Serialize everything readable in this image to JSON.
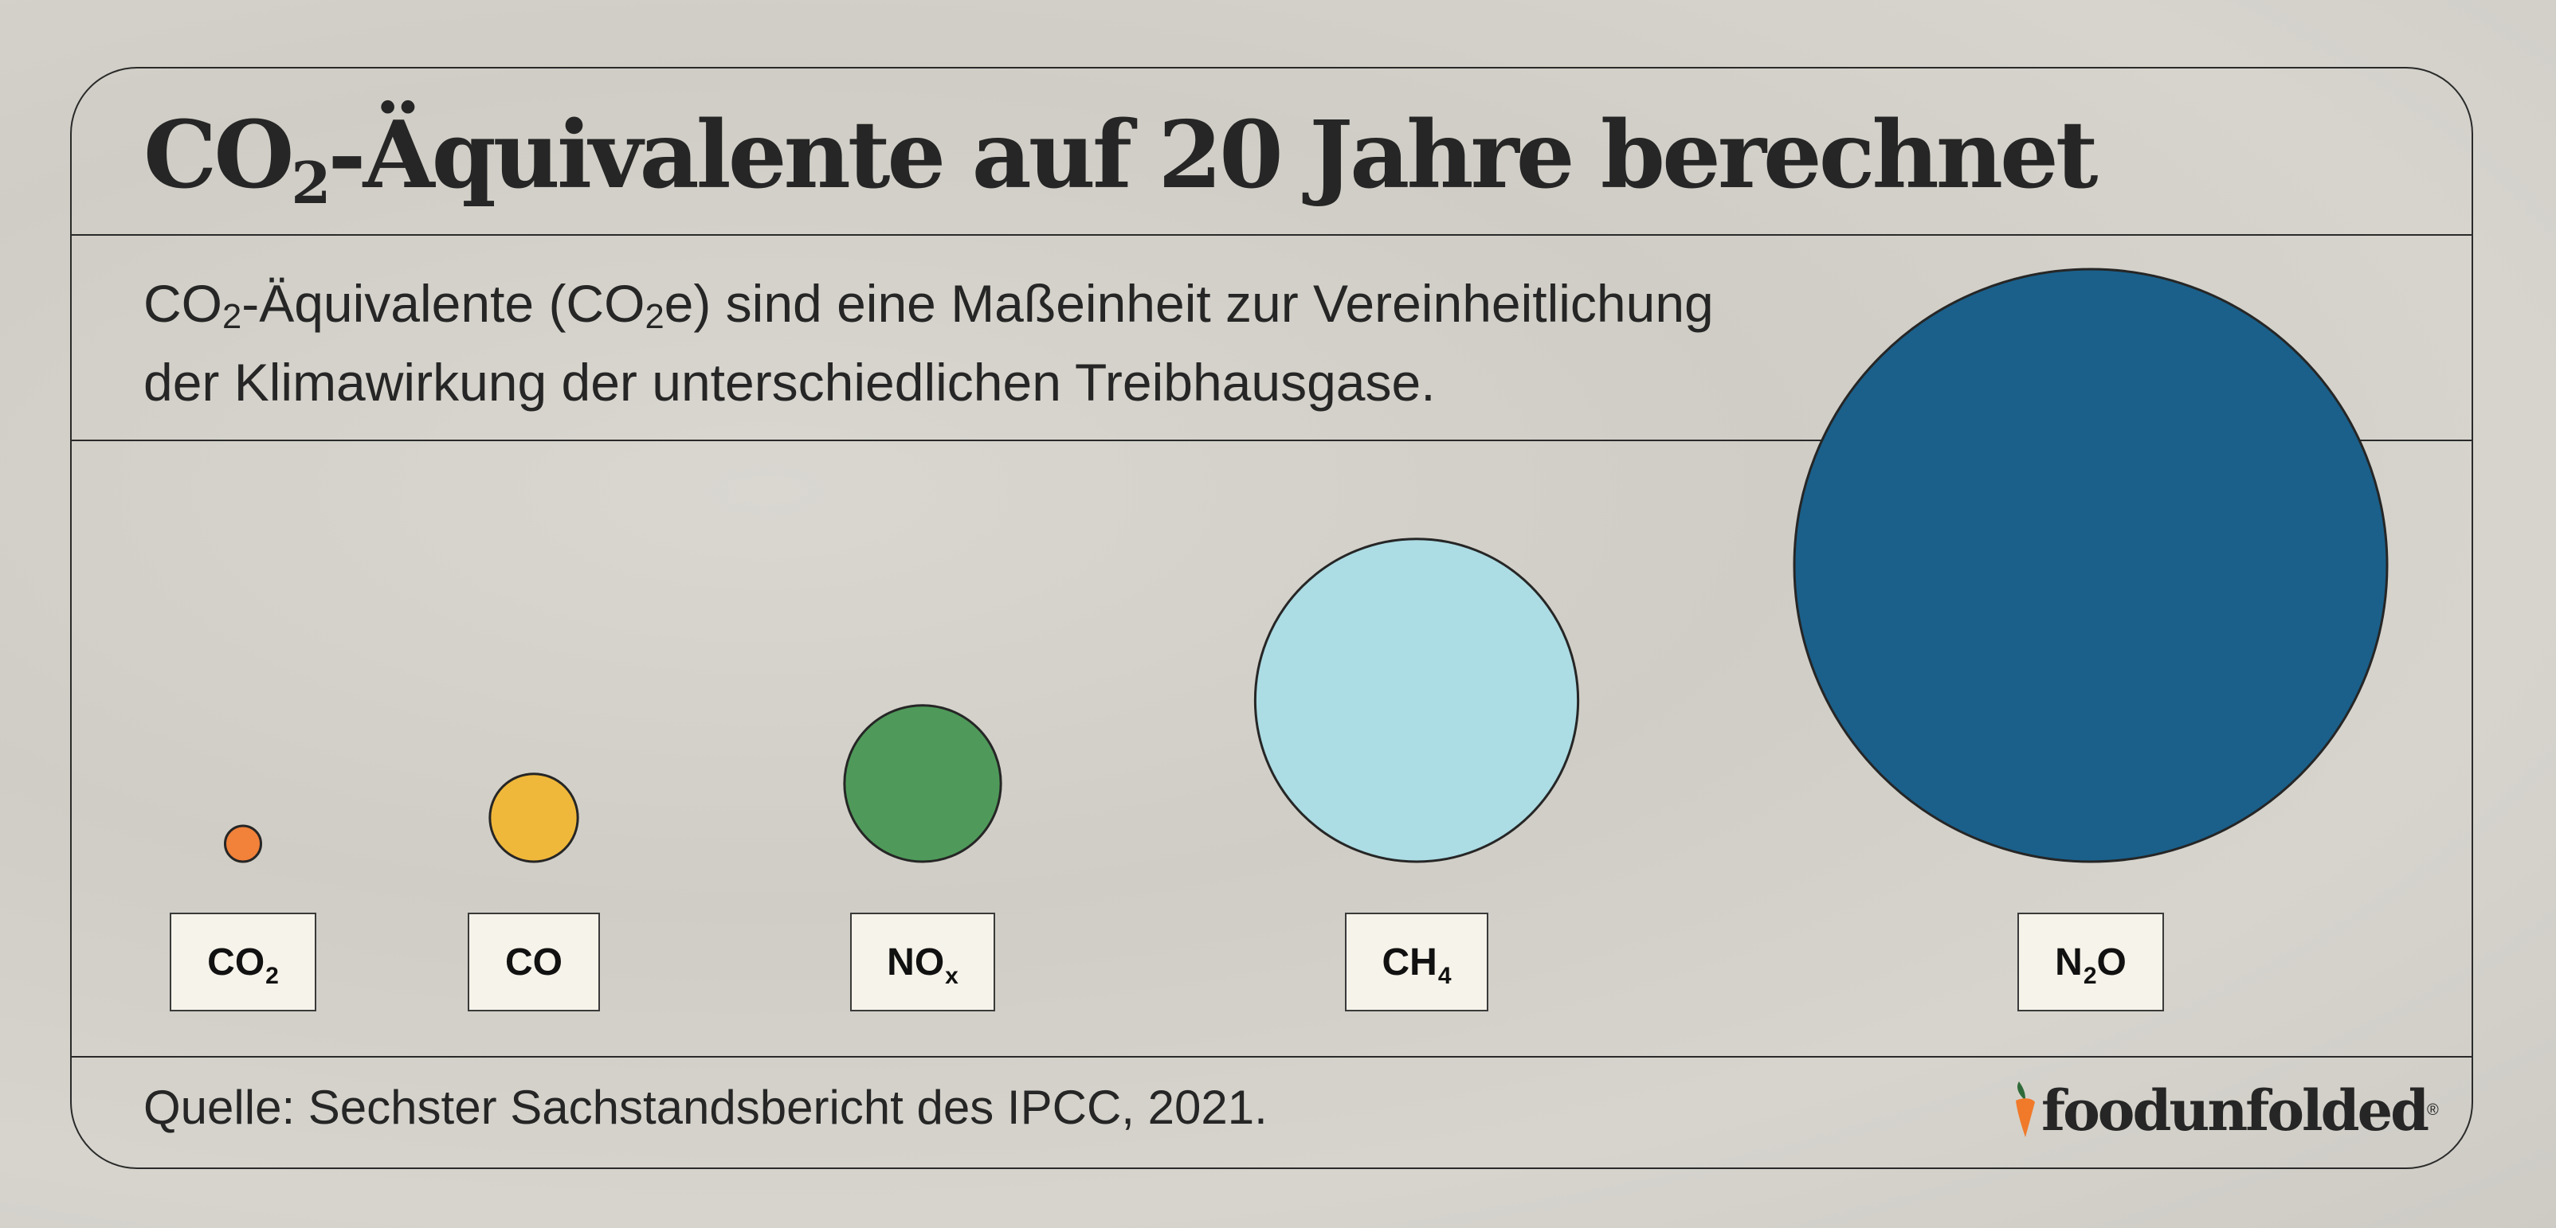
{
  "title": {
    "main": "CO",
    "sub": "2",
    "rest": "-Äquivalente auf 20 Jahre berechnet"
  },
  "description": {
    "line1_a": "CO",
    "line1_sub": "2",
    "line1_b": "-Äquivalente (CO",
    "line1_sub2": "2",
    "line1_c": "e) sind eine Maßeinheit zur Vereinheitlichung",
    "line2": "der Klimawirkung der unterschiedlichen Treibhausgase."
  },
  "chart_data": {
    "type": "bubble",
    "title": "CO₂-Äquivalente auf 20 Jahre berechnet",
    "categories": [
      "CO2",
      "CO",
      "NOx",
      "CH4",
      "N2O"
    ],
    "labels": [
      {
        "main": "CO",
        "sub": "2",
        "after": ""
      },
      {
        "main": "CO",
        "sub": "",
        "after": ""
      },
      {
        "main": "NO",
        "sub": "x",
        "after": ""
      },
      {
        "main": "CH",
        "sub": "4",
        "after": ""
      },
      {
        "main": "N",
        "sub": "2",
        "after": "O"
      }
    ],
    "values": [
      1,
      6,
      19,
      81,
      273
    ],
    "colors": [
      "#f2813a",
      "#f0b83a",
      "#4f9a5a",
      "#acdce4",
      "#1a608b"
    ]
  },
  "source": "Quelle: Sechster Sachstandsbericht des IPCC, 2021.",
  "logo": {
    "text": "foodunfolded",
    "reg": "®",
    "carrot_color": "#f07a2a",
    "leaf_color": "#2f6b3a"
  }
}
